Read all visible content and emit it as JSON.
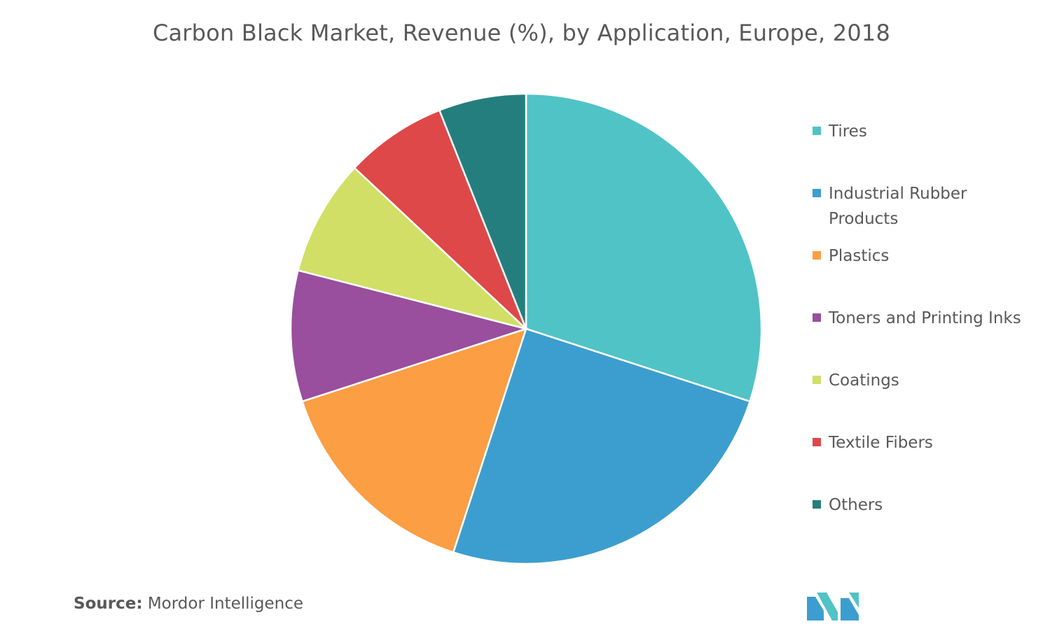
{
  "chart_data": {
    "type": "pie",
    "title": "Carbon Black Market, Revenue (%), by Application, Europe, 2018",
    "categories": [
      "Tires",
      "Industrial Rubber Products",
      "Plastics",
      "Toners and Printing Inks",
      "Coatings",
      "Textile Fibers",
      "Others"
    ],
    "values": [
      30.0,
      25.0,
      15.0,
      9.0,
      8.0,
      7.0,
      6.0
    ],
    "colors": [
      "#50C3C6",
      "#3C9ECF",
      "#FB9E44",
      "#9A4E9E",
      "#D1DF66",
      "#DE4849",
      "#257E7E"
    ],
    "legend_position": "right"
  },
  "source": {
    "label": "Source:",
    "text": "Mordor Intelligence"
  },
  "logo": {
    "name": "mordor-intelligence-logo",
    "colors": [
      "#3C9ECF",
      "#50C3C6"
    ]
  }
}
